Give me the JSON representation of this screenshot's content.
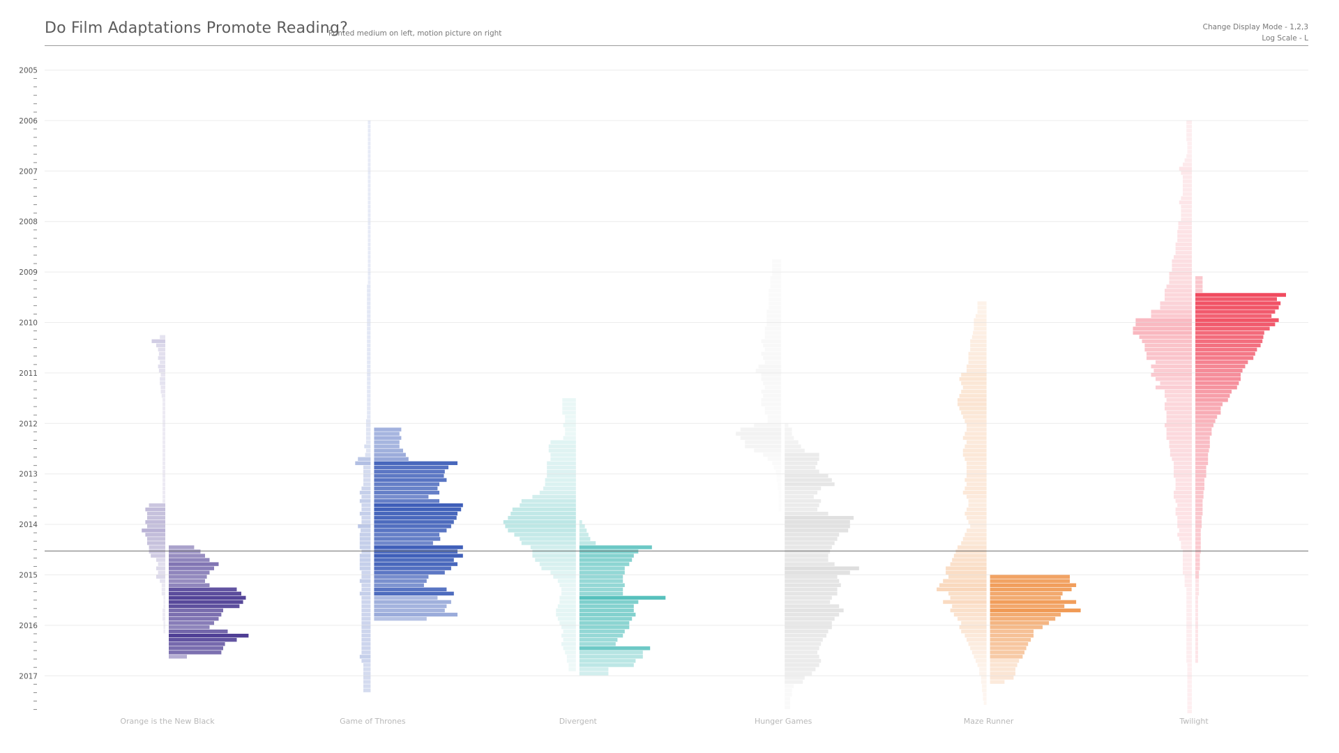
{
  "header": {
    "title": "Do Film Adaptations Promote Reading?",
    "subtitle": "Printed medium on left, motion picture on right",
    "hint_display_mode": "Change Display Mode - 1,2,3",
    "hint_log_scale": "Log Scale - L"
  },
  "chart_data": {
    "type": "bar",
    "orientation": "horizontal mirrored (butterfly)",
    "time_resolution": "month",
    "y_axis": {
      "ticks": [
        "2005",
        "2006",
        "2007",
        "2008",
        "2009",
        "2010",
        "2011",
        "2012",
        "2013",
        "2014",
        "2015",
        "2016",
        "2017"
      ],
      "range": [
        "2005-01",
        "2017-09"
      ]
    },
    "reference_line_date": "2014-07",
    "scale_note": "relative search interest per title, 0-100",
    "series": [
      {
        "name": "Orange is the New Black",
        "color": "#4f3f95",
        "book_start": "2010-04",
        "book": [
          6,
          15,
          10,
          8,
          7,
          8,
          6,
          8,
          7,
          5,
          6,
          6,
          5,
          5,
          4,
          3,
          3,
          3,
          3,
          3,
          3,
          3,
          3,
          3,
          3,
          3,
          3,
          3,
          3,
          3,
          3,
          3,
          3,
          3,
          3,
          3,
          3,
          3,
          3,
          3,
          18,
          22,
          20,
          20,
          22,
          20,
          26,
          22,
          20,
          20,
          18,
          18,
          16,
          10,
          8,
          10,
          8,
          10,
          6,
          4,
          4,
          4,
          2,
          2,
          2,
          3,
          3,
          3,
          2,
          2,
          2
        ],
        "film_start": "2014-06",
        "film": [
          28,
          35,
          40,
          45,
          55,
          50,
          45,
          42,
          40,
          45,
          75,
          80,
          85,
          82,
          78,
          60,
          58,
          55,
          50,
          45,
          65,
          88,
          75,
          62,
          60,
          58,
          20
        ]
      },
      {
        "name": "Game of Thrones",
        "color": "#3f5fb9",
        "book_start": "2006-01",
        "book": [
          3,
          3,
          3,
          3,
          3,
          3,
          3,
          3,
          3,
          3,
          3,
          3,
          3,
          3,
          3,
          3,
          3,
          3,
          3,
          3,
          3,
          3,
          3,
          3,
          3,
          3,
          3,
          3,
          3,
          3,
          3,
          3,
          3,
          3,
          3,
          3,
          3,
          3,
          3,
          4,
          4,
          4,
          4,
          4,
          4,
          4,
          4,
          4,
          4,
          4,
          4,
          4,
          4,
          4,
          4,
          4,
          4,
          4,
          4,
          4,
          4,
          4,
          4,
          4,
          4,
          4,
          4,
          4,
          4,
          4,
          4,
          5,
          5,
          5,
          5,
          5,
          5,
          7,
          5,
          6,
          14,
          17,
          8,
          8,
          8,
          8,
          8,
          10,
          12,
          10,
          12,
          10,
          10,
          12,
          10,
          10,
          14,
          11,
          12,
          12,
          12,
          12,
          10,
          12,
          12,
          12,
          12,
          10,
          10,
          12,
          10,
          10,
          12,
          10,
          10,
          10,
          10,
          10,
          10,
          10,
          10,
          10,
          10,
          10,
          10,
          10,
          10,
          12,
          10,
          8,
          8,
          8,
          8,
          8,
          8,
          8
        ],
        "film_start": "2012-02",
        "film": [
          30,
          28,
          30,
          28,
          28,
          32,
          35,
          38,
          92,
          82,
          78,
          77,
          80,
          72,
          70,
          72,
          60,
          72,
          98,
          96,
          92,
          91,
          88,
          85,
          80,
          72,
          73,
          65,
          98,
          92,
          98,
          88,
          92,
          85,
          78,
          60,
          58,
          55,
          80,
          88,
          70,
          85,
          80,
          78,
          92,
          58
        ],
        "film_fade_months": 6
      },
      {
        "name": "Divergent",
        "color": "#57c1bd",
        "book_start": "2011-07",
        "book": [
          15,
          15,
          15,
          15,
          12,
          12,
          14,
          12,
          12,
          14,
          28,
          30,
          30,
          28,
          28,
          32,
          32,
          32,
          32,
          34,
          34,
          36,
          40,
          48,
          60,
          62,
          70,
          72,
          75,
          80,
          78,
          75,
          68,
          62,
          60,
          50,
          48,
          48,
          45,
          40,
          38,
          28,
          25,
          20,
          18,
          16,
          16,
          18,
          18,
          20,
          22,
          22,
          20,
          18,
          16,
          14,
          16,
          14,
          16,
          14,
          12,
          10,
          10,
          8,
          8
        ],
        "film_start": "2013-12",
        "film": [
          3,
          6,
          8,
          10,
          12,
          18,
          80,
          65,
          60,
          58,
          55,
          50,
          50,
          48,
          48,
          50,
          48,
          48,
          95,
          65,
          60,
          60,
          62,
          58,
          55,
          55,
          50,
          48,
          42,
          40,
          78,
          70,
          70,
          62,
          60,
          32,
          32
        ],
        "film_fade_months": 6
      },
      {
        "name": "Hunger Games",
        "color": "#dedede",
        "book_start": "2008-10",
        "book": [
          10,
          10,
          10,
          10,
          12,
          12,
          12,
          14,
          14,
          14,
          14,
          14,
          16,
          16,
          16,
          16,
          18,
          18,
          18,
          22,
          20,
          18,
          22,
          20,
          18,
          25,
          28,
          22,
          22,
          20,
          18,
          22,
          20,
          22,
          22,
          18,
          18,
          15,
          15,
          30,
          45,
          50,
          45,
          40,
          40,
          30,
          20,
          15,
          10,
          8,
          6,
          5,
          5,
          4,
          4,
          3,
          3,
          3,
          3,
          3
        ],
        "film_start": "2012-01",
        "film": [
          4,
          8,
          8,
          10,
          15,
          18,
          22,
          38,
          38,
          36,
          34,
          38,
          48,
          52,
          55,
          40,
          36,
          32,
          40,
          38,
          36,
          48,
          76,
          72,
          72,
          70,
          60,
          58,
          55,
          52,
          50,
          48,
          48,
          55,
          82,
          72,
          58,
          60,
          62,
          58,
          58,
          52,
          50,
          60,
          65,
          60,
          55,
          52,
          52,
          48,
          46,
          42,
          40,
          38,
          36,
          38,
          40,
          38,
          34,
          30,
          22,
          20,
          10,
          8,
          8,
          6,
          6,
          6
        ],
        "film_fade_months": 6
      },
      {
        "name": "Maze Runner",
        "color": "#f09a55",
        "book_start": "2009-08",
        "book": [
          10,
          10,
          10,
          12,
          14,
          14,
          14,
          15,
          16,
          18,
          18,
          18,
          20,
          20,
          20,
          22,
          22,
          28,
          30,
          28,
          26,
          28,
          30,
          32,
          32,
          30,
          28,
          26,
          24,
          22,
          22,
          24,
          26,
          22,
          24,
          26,
          26,
          24,
          22,
          22,
          22,
          22,
          24,
          22,
          24,
          26,
          22,
          20,
          20,
          22,
          24,
          22,
          20,
          18,
          22,
          24,
          26,
          28,
          32,
          34,
          36,
          38,
          40,
          45,
          45,
          42,
          48,
          52,
          55,
          42,
          40,
          48,
          38,
          40,
          36,
          32,
          28,
          30,
          28,
          24,
          22,
          20,
          18,
          16,
          14,
          12,
          10,
          8,
          8,
          6,
          6,
          5,
          5,
          4,
          4,
          3
        ],
        "film_start": "2015-01",
        "film": [
          88,
          88,
          95,
          90,
          80,
          78,
          95,
          82,
          100,
          78,
          72,
          65,
          58,
          48,
          48,
          45,
          42,
          40,
          38,
          36,
          32,
          30,
          28,
          28,
          26,
          16
        ],
        "film_fade_months": 6
      },
      {
        "name": "Twilight",
        "color": "#f04a5e",
        "book_start": "2006-01",
        "book": [
          6,
          6,
          6,
          6,
          6,
          5,
          5,
          5,
          6,
          8,
          10,
          14,
          12,
          10,
          10,
          10,
          10,
          10,
          12,
          14,
          12,
          12,
          12,
          12,
          15,
          15,
          16,
          16,
          16,
          18,
          18,
          18,
          20,
          22,
          22,
          22,
          25,
          25,
          25,
          28,
          30,
          30,
          30,
          35,
          35,
          45,
          45,
          62,
          62,
          65,
          65,
          58,
          55,
          52,
          52,
          50,
          50,
          40,
          45,
          42,
          45,
          40,
          35,
          40,
          30,
          30,
          28,
          30,
          30,
          28,
          28,
          28,
          30,
          28,
          28,
          28,
          25,
          25,
          24,
          24,
          22,
          20,
          20,
          20,
          20,
          18,
          18,
          18,
          20,
          20,
          18,
          16,
          18,
          18,
          16,
          16,
          16,
          14,
          16,
          14,
          12,
          12,
          10,
          10,
          10,
          10,
          10,
          10,
          8,
          8,
          8,
          6,
          6,
          6,
          6,
          6,
          6,
          6,
          6,
          6,
          6,
          6,
          6,
          6,
          6,
          6,
          6,
          6,
          6,
          5,
          5,
          5,
          5,
          5,
          5,
          5,
          5,
          5,
          5,
          5,
          5
        ],
        "film_start": "2009-02",
        "film": [
          8,
          8,
          8,
          8,
          100,
          90,
          94,
          92,
          88,
          84,
          92,
          88,
          82,
          76,
          75,
          74,
          72,
          68,
          66,
          64,
          58,
          55,
          52,
          50,
          50,
          48,
          46,
          40,
          38,
          36,
          30,
          28,
          28,
          24,
          22,
          20,
          18,
          18,
          16,
          16,
          16,
          15,
          14,
          14,
          14,
          12,
          12,
          12,
          10,
          10,
          10,
          9,
          9,
          8,
          8,
          8,
          8,
          7,
          7,
          7,
          6,
          6,
          6,
          6,
          6,
          6,
          5,
          5,
          5,
          5,
          4,
          4,
          4,
          4,
          4,
          4,
          3,
          3,
          3,
          3,
          3,
          3,
          3,
          3,
          3,
          3,
          3,
          3,
          3,
          3,
          3,
          3
        ],
        "film_fade_months": 20
      }
    ]
  }
}
